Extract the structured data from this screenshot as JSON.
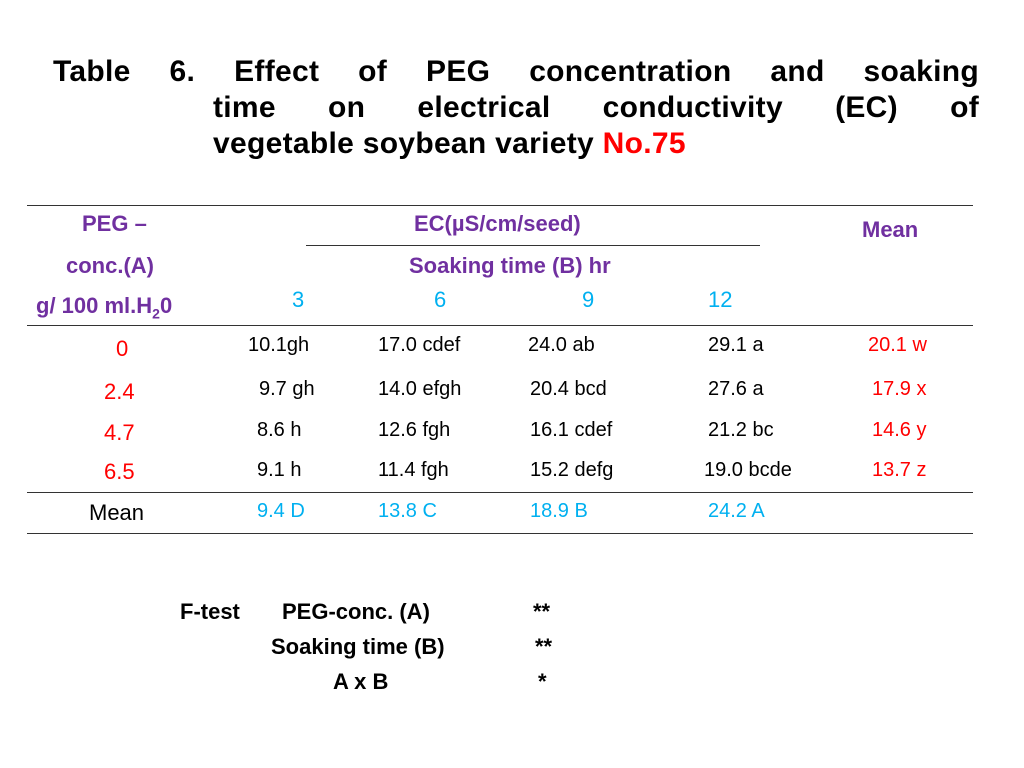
{
  "title": {
    "line1": "Table 6. Effect of PEG concentration and soaking",
    "line2": "time on electrical conductivity (EC) of",
    "line3_prefix": "vegetable soybean variety",
    "line3_highlight": "No.75"
  },
  "table": {
    "header": {
      "peg_line1": "PEG –",
      "peg_line2": "conc.(A)",
      "peg_line3_main": "g/ 100 ml.H",
      "peg_line3_sub": "2",
      "peg_line3_tail": "0",
      "ec_label": "EC(µS/cm/seed)",
      "soaking_label": "Soaking time (B) hr",
      "mean_label": "Mean",
      "soaking_times": [
        "3",
        "6",
        "9",
        "12"
      ]
    },
    "rows": [
      {
        "peg": "0",
        "values": [
          "10.1gh",
          "17.0 cdef",
          "24.0 ab",
          "29.1 a"
        ],
        "mean": "20.1 w"
      },
      {
        "peg": "2.4",
        "values": [
          "9.7 gh",
          "14.0 efgh",
          "20.4 bcd",
          "27.6 a"
        ],
        "mean": "17.9 x"
      },
      {
        "peg": "4.7",
        "values": [
          "8.6 h",
          "12.6 fgh",
          "16.1 cdef",
          "21.2 bc"
        ],
        "mean": "14.6 y"
      },
      {
        "peg": "6.5",
        "values": [
          "9.1 h",
          "11.4 fgh",
          "15.2 defg",
          "19.0 bcde"
        ],
        "mean": "13.7 z"
      }
    ],
    "mean_row": {
      "label": "Mean",
      "values": [
        "9.4 D",
        "13.8 C",
        "18.9 B",
        "24.2 A"
      ]
    }
  },
  "ftest": {
    "label": "F-test",
    "rows": [
      {
        "factor": "PEG-conc. (A)",
        "sig": "**"
      },
      {
        "factor": "Soaking time (B)",
        "sig": "**"
      },
      {
        "factor": "A x B",
        "sig": "*"
      }
    ]
  },
  "colors": {
    "header_purple": "#7030a0",
    "highlight_red": "#ff0000",
    "soaking_cyan": "#00b0f0"
  }
}
